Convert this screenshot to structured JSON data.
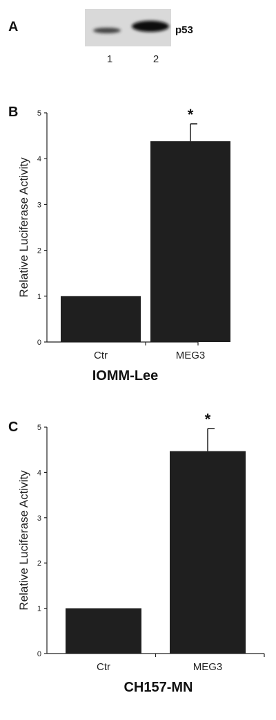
{
  "panel_a": {
    "letter": "A",
    "protein_label": "p53",
    "lanes": [
      {
        "label": "1",
        "band_intensity": 0.35
      },
      {
        "label": "2",
        "band_intensity": 1.0
      }
    ]
  },
  "chart_data": [
    {
      "type": "bar",
      "panel_letter": "B",
      "title": "IOMM-Lee",
      "xlabel": "",
      "ylabel": "Relative Luciferase Activity",
      "categories": [
        "Ctr",
        "MEG3"
      ],
      "values": [
        1.0,
        4.38
      ],
      "error": [
        0,
        0.38
      ],
      "annotations": [
        "",
        "*"
      ],
      "ylim": [
        0,
        5
      ],
      "yticks": [
        0,
        1,
        2,
        3,
        4,
        5
      ],
      "bar_color": "#1f1f1f",
      "grid": false,
      "legend": "none"
    },
    {
      "type": "bar",
      "panel_letter": "C",
      "title": "CH157-MN",
      "xlabel": "",
      "ylabel": "Relative Luciferase Activity",
      "categories": [
        "Ctr",
        "MEG3"
      ],
      "values": [
        1.0,
        4.47
      ],
      "error": [
        0,
        0.5
      ],
      "annotations": [
        "",
        "*"
      ],
      "ylim": [
        0,
        5
      ],
      "yticks": [
        0,
        1,
        2,
        3,
        4,
        5
      ],
      "bar_color": "#1f1f1f",
      "grid": false,
      "legend": "none"
    }
  ]
}
